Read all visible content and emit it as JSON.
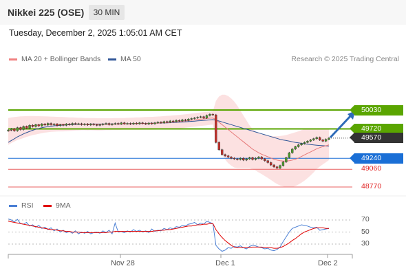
{
  "header": {
    "title": "Nikkei 225 (OSE)",
    "timeframe": "30 MIN",
    "datetime": "Tuesday, December 2, 2025 1:05:01 AM CET"
  },
  "legend": {
    "bollinger_label": "MA 20 + Bollinger Bands",
    "bollinger_color": "#f08080",
    "ma50_label": "MA 50",
    "ma50_color": "#2f5597",
    "copyright": "Research © 2025 Trading Central"
  },
  "rsi_legend": {
    "rsi_label": "RSI",
    "rsi_color": "#4a7fd4",
    "ma_label": "9MA",
    "ma_color": "#e00000"
  },
  "levels": [
    {
      "value": "50030",
      "kind": "resistance",
      "color": "#5aa500"
    },
    {
      "value": "49720",
      "kind": "resistance",
      "color": "#5aa500"
    },
    {
      "value": "49570",
      "kind": "last",
      "color": "#333333"
    },
    {
      "value": "49240",
      "kind": "pivot",
      "color": "#1a6fd6"
    },
    {
      "value": "49060",
      "kind": "support",
      "color": "#e02020"
    },
    {
      "value": "48770",
      "kind": "support",
      "color": "#e02020"
    }
  ],
  "x_labels": [
    "Nov 28",
    "Dec 1",
    "Dec 2"
  ],
  "rsi_ticks": [
    "70",
    "50",
    "30"
  ],
  "chart_data": {
    "type": "candlestick",
    "y_price_range": [
      48700,
      50200
    ],
    "price_series": [
      49700,
      49720,
      49690,
      49740,
      49710,
      49760,
      49730,
      49780,
      49760,
      49790,
      49770,
      49800,
      49785,
      49810,
      49790,
      49800,
      49775,
      49790,
      49780,
      49800,
      49790,
      49810,
      49800,
      49805,
      49790,
      49800,
      49785,
      49800,
      49790,
      49780,
      49790,
      49800,
      49810,
      49790,
      49800,
      49810,
      49800,
      49820,
      49805,
      49810,
      49800,
      49815,
      49805,
      49820,
      49810,
      49800,
      49815,
      49805,
      49820,
      49830,
      49820,
      49840,
      49830,
      49850,
      49840,
      49860,
      49850,
      49870,
      49860,
      49880,
      49890,
      49900,
      49910,
      49920,
      49900,
      49940,
      49960,
      49950,
      49500,
      49380,
      49300,
      49280,
      49260,
      49240,
      49230,
      49220,
      49240,
      49210,
      49230,
      49250,
      49220,
      49240,
      49260,
      49230,
      49200,
      49170,
      49130,
      49100,
      49080,
      49120,
      49180,
      49250,
      49330,
      49390,
      49430,
      49460,
      49480,
      49500,
      49520,
      49540,
      49560,
      49580,
      49540,
      49520,
      49550,
      49570
    ],
    "ma20": [
      49680,
      49700,
      49715,
      49730,
      49740,
      49750,
      49760,
      49768,
      49775,
      49780,
      49785,
      49790,
      49793,
      49795,
      49797,
      49798,
      49798,
      49798,
      49797,
      49797,
      49798,
      49799,
      49800,
      49800,
      49800,
      49799,
      49798,
      49798,
      49797,
      49796,
      49795,
      49796,
      49797,
      49797,
      49798,
      49799,
      49800,
      49802,
      49803,
      49804,
      49805,
      49806,
      49807,
      49808,
      49809,
      49810,
      49811,
      49812,
      49814,
      49816,
      49818,
      49821,
      49824,
      49828,
      49832,
      49836,
      49840,
      49845,
      49850,
      49856,
      49862,
      49868,
      49874,
      49880,
      49884,
      49890,
      49896,
      49900,
      49870,
      49830,
      49790,
      49750,
      49710,
      49670,
      49630,
      49590,
      49550,
      49510,
      49470,
      49430,
      49390,
      49360,
      49330,
      49305,
      49285,
      49265,
      49245,
      49225,
      49210,
      49200,
      49195,
      49195,
      49200,
      49210,
      49225,
      49245,
      49270,
      49295,
      49320,
      49345,
      49370,
      49395,
      49415,
      49430,
      49445,
      49460
    ],
    "ma50": [
      49500,
      49530,
      49560,
      49590,
      49615,
      49640,
      49660,
      49680,
      49698,
      49714,
      49728,
      49740,
      49750,
      49758,
      49765,
      49771,
      49776,
      49780,
      49784,
      49787,
      49790,
      49792,
      49794,
      49796,
      49797,
      49798,
      49799,
      49800,
      49800,
      49800,
      49800,
      49800,
      49800,
      49800,
      49800,
      49801,
      49802,
      49803,
      49804,
      49805,
      49806,
      49807,
      49808,
      49809,
      49810,
      49811,
      49812,
      49813,
      49814,
      49815,
      49816,
      49818,
      49820,
      49822,
      49824,
      49827,
      49830,
      49833,
      49836,
      49840,
      49844,
      49848,
      49852,
      49856,
      49860,
      49864,
      49868,
      49872,
      49865,
      49850,
      49835,
      49820,
      49805,
      49790,
      49775,
      49760,
      49745,
      49730,
      49715,
      49700,
      49685,
      49670,
      49655,
      49640,
      49625,
      49610,
      49595,
      49580,
      49565,
      49550,
      49540,
      49530,
      49520,
      49510,
      49500,
      49492,
      49484,
      49476,
      49470,
      49464,
      49458,
      49454,
      49450,
      49446,
      49443,
      49440
    ],
    "bb_upper": [
      49900,
      49910,
      49915,
      49920,
      49925,
      49928,
      49930,
      49931,
      49931,
      49930,
      49929,
      49928,
      49926,
      49924,
      49922,
      49920,
      49918,
      49916,
      49914,
      49912,
      49910,
      49908,
      49906,
      49904,
      49902,
      49900,
      49899,
      49898,
      49897,
      49896,
      49895,
      49895,
      49895,
      49895,
      49896,
      49897,
      49898,
      49899,
      49900,
      49902,
      49904,
      49906,
      49908,
      49910,
      49912,
      49914,
      49916,
      49918,
      49920,
      49923,
      49926,
      49930,
      49934,
      49938,
      49942,
      49946,
      49950,
      49955,
      49960,
      49966,
      49972,
      49978,
      49984,
      49990,
      49995,
      50000,
      50005,
      50010,
      50180,
      50250,
      50280,
      50280,
      50260,
      50220,
      50170,
      50100,
      50020,
      49940,
      49860,
      49780,
      49720,
      49680,
      49650,
      49630,
      49620,
      49610,
      49605,
      49600,
      49600,
      49605,
      49610,
      49620,
      49635,
      49650,
      49665,
      49680,
      49700,
      49715,
      49725,
      49730,
      49730,
      49728,
      49725,
      49720,
      49715,
      49710
    ],
    "bb_lower": [
      49460,
      49490,
      49515,
      49540,
      49555,
      49572,
      49590,
      49605,
      49619,
      49630,
      49641,
      49652,
      49660,
      49666,
      49672,
      49676,
      49678,
      49680,
      49680,
      49682,
      49686,
      49690,
      49694,
      49696,
      49698,
      49698,
      49697,
      49698,
      49697,
      49696,
      49695,
      49697,
      49699,
      49699,
      49700,
      49701,
      49702,
      49705,
      49706,
      49706,
      49706,
      49706,
      49706,
      49706,
      49706,
      49706,
      49706,
      49706,
      49708,
      49709,
      49710,
      49712,
      49714,
      49718,
      49722,
      49726,
      49730,
      49735,
      49740,
      49746,
      49752,
      49758,
      49764,
      49770,
      49773,
      49780,
      49787,
      49790,
      49560,
      49410,
      49300,
      49220,
      49160,
      49120,
      49090,
      49080,
      49080,
      49080,
      49080,
      49080,
      49060,
      49040,
      49010,
      48980,
      48950,
      48920,
      48885,
      48850,
      48820,
      48795,
      48780,
      48770,
      48765,
      48770,
      48785,
      48810,
      48840,
      48875,
      48915,
      48960,
      49010,
      49062,
      49105,
      49140,
      49175,
      49210
    ],
    "rsi": [
      72,
      70,
      67,
      71,
      64,
      63,
      66,
      60,
      62,
      58,
      61,
      56,
      58,
      54,
      57,
      52,
      55,
      50,
      53,
      49,
      51,
      48,
      52,
      47,
      50,
      48,
      51,
      47,
      49,
      50,
      48,
      52,
      49,
      53,
      47,
      65,
      50,
      51,
      49,
      52,
      50,
      54,
      51,
      53,
      50,
      52,
      49,
      55,
      51,
      53,
      52,
      56,
      54,
      57,
      55,
      59,
      58,
      61,
      60,
      63,
      64,
      66,
      62,
      65,
      63,
      68,
      66,
      64,
      28,
      22,
      18,
      20,
      24,
      23,
      26,
      25,
      27,
      24,
      22,
      26,
      28,
      27,
      25,
      24,
      22,
      23,
      20,
      19,
      21,
      25,
      34,
      42,
      50,
      56,
      58,
      60,
      62,
      61,
      60,
      58,
      57,
      58,
      53,
      54,
      55,
      56
    ],
    "rsi_ma": [
      68,
      67,
      66,
      65,
      64,
      63,
      62,
      61,
      60,
      59,
      58,
      57,
      56,
      55,
      54,
      54,
      53,
      52,
      52,
      51,
      51,
      50,
      50,
      50,
      49,
      49,
      49,
      49,
      49,
      49,
      49,
      49,
      49,
      50,
      50,
      51,
      51,
      51,
      51,
      51,
      51,
      51,
      51,
      51,
      51,
      51,
      51,
      51,
      52,
      52,
      53,
      53,
      54,
      54,
      55,
      56,
      57,
      58,
      59,
      60,
      60,
      61,
      62,
      62,
      63,
      63,
      64,
      64,
      54,
      47,
      41,
      36,
      32,
      28,
      25,
      24,
      24,
      24,
      24,
      24,
      25,
      25,
      25,
      25,
      24,
      24,
      24,
      23,
      23,
      24,
      26,
      29,
      32,
      36,
      39,
      43,
      47,
      50,
      52,
      54,
      56,
      57,
      57,
      57,
      56,
      56
    ],
    "rsi_range": [
      0,
      100
    ]
  }
}
